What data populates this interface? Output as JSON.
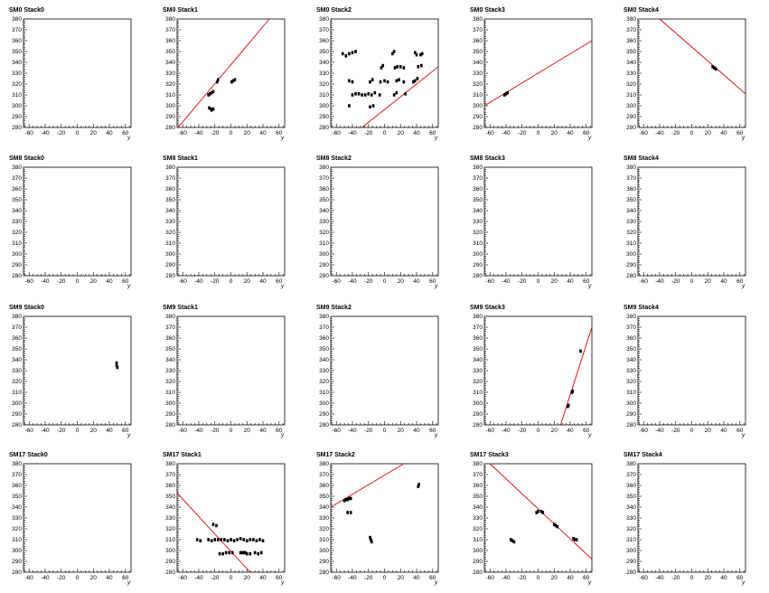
{
  "chart_data": {
    "type": "scatter",
    "x_ticks": [
      -60,
      -40,
      -20,
      0,
      20,
      40,
      60
    ],
    "y_ticks": [
      280,
      290,
      300,
      310,
      320,
      330,
      340,
      350,
      360,
      370,
      380
    ],
    "xlim": [
      -67,
      67
    ],
    "ylim": [
      280,
      380
    ],
    "xlabel": "y",
    "line_color": "#dd0000",
    "marker_color": "#000000",
    "grid": false,
    "panels": [
      {
        "title": "SM0 Stack0",
        "points": [],
        "line": null
      },
      {
        "title": "SM0 Stack1",
        "points": [
          [
            -28,
            310
          ],
          [
            -26,
            311
          ],
          [
            -24,
            312
          ],
          [
            -22,
            313
          ],
          [
            -27,
            298
          ],
          [
            -25,
            297
          ],
          [
            -24,
            296
          ],
          [
            -22,
            297
          ],
          [
            -17,
            322
          ],
          [
            -16,
            324
          ],
          [
            1,
            322
          ],
          [
            3,
            323
          ],
          [
            5,
            324
          ]
        ],
        "line": [
          [
            -67,
            279
          ],
          [
            48,
            380
          ]
        ]
      },
      {
        "title": "SM0 Stack2",
        "points": [
          [
            -52,
            348
          ],
          [
            -48,
            346
          ],
          [
            -44,
            348
          ],
          [
            -40,
            349
          ],
          [
            -36,
            350
          ],
          [
            10,
            348
          ],
          [
            12,
            350
          ],
          [
            38,
            349
          ],
          [
            40,
            347
          ],
          [
            45,
            347
          ],
          [
            47,
            348
          ],
          [
            -44,
            323
          ],
          [
            -40,
            322
          ],
          [
            -18,
            322
          ],
          [
            -15,
            324
          ],
          [
            -5,
            322
          ],
          [
            0,
            323
          ],
          [
            4,
            322
          ],
          [
            15,
            323
          ],
          [
            18,
            324
          ],
          [
            24,
            322
          ],
          [
            36,
            322
          ],
          [
            38,
            323
          ],
          [
            41,
            325
          ],
          [
            -4,
            335
          ],
          [
            -2,
            337
          ],
          [
            13,
            335
          ],
          [
            16,
            336
          ],
          [
            20,
            336
          ],
          [
            24,
            335
          ],
          [
            42,
            336
          ],
          [
            46,
            337
          ],
          [
            -40,
            310
          ],
          [
            -36,
            311
          ],
          [
            -32,
            311
          ],
          [
            -28,
            310
          ],
          [
            -24,
            310
          ],
          [
            -20,
            311
          ],
          [
            -16,
            310
          ],
          [
            -12,
            312
          ],
          [
            -6,
            310
          ],
          [
            12,
            310
          ],
          [
            15,
            312
          ],
          [
            26,
            311
          ],
          [
            -44,
            300
          ],
          [
            -18,
            299
          ],
          [
            -14,
            300
          ]
        ],
        "line": [
          [
            -28,
            280
          ],
          [
            67,
            336
          ]
        ]
      },
      {
        "title": "SM0 Stack3",
        "points": [
          [
            -42,
            310
          ],
          [
            -40,
            311
          ],
          [
            -38,
            312
          ]
        ],
        "line": [
          [
            -67,
            300
          ],
          [
            67,
            360
          ]
        ]
      },
      {
        "title": "SM0 Stack4",
        "points": [
          [
            26,
            336
          ],
          [
            28,
            335
          ],
          [
            30,
            334
          ]
        ],
        "line": [
          [
            -40,
            380
          ],
          [
            67,
            311
          ]
        ]
      },
      {
        "title": "SM8 Stack0",
        "points": [],
        "line": null
      },
      {
        "title": "SM8 Stack1",
        "points": [],
        "line": null
      },
      {
        "title": "SM8 Stack2",
        "points": [],
        "line": null
      },
      {
        "title": "SM8 Stack3",
        "points": [],
        "line": null
      },
      {
        "title": "SM8 Stack4",
        "points": [],
        "line": null
      },
      {
        "title": "SM9 Stack0",
        "points": [
          [
            49,
            337
          ],
          [
            49,
            335
          ],
          [
            50,
            333
          ]
        ],
        "line": null
      },
      {
        "title": "SM9 Stack1",
        "points": [],
        "line": null
      },
      {
        "title": "SM9 Stack2",
        "points": [],
        "line": null
      },
      {
        "title": "SM9 Stack3",
        "points": [
          [
            37,
            297
          ],
          [
            38,
            298
          ],
          [
            42,
            310
          ],
          [
            43,
            311
          ],
          [
            53,
            348
          ]
        ],
        "line": [
          [
            28,
            280
          ],
          [
            67,
            370
          ]
        ]
      },
      {
        "title": "SM9 Stack4",
        "points": [],
        "line": null
      },
      {
        "title": "SM17 Stack0",
        "points": [],
        "line": null
      },
      {
        "title": "SM17 Stack1",
        "points": [
          [
            -22,
            324
          ],
          [
            -18,
            323
          ],
          [
            -42,
            310
          ],
          [
            -38,
            309
          ],
          [
            -28,
            310
          ],
          [
            -24,
            309
          ],
          [
            -20,
            310
          ],
          [
            -16,
            310
          ],
          [
            -12,
            310
          ],
          [
            -8,
            310
          ],
          [
            -4,
            309
          ],
          [
            0,
            310
          ],
          [
            4,
            309
          ],
          [
            8,
            310
          ],
          [
            12,
            311
          ],
          [
            16,
            310
          ],
          [
            20,
            309
          ],
          [
            24,
            310
          ],
          [
            28,
            310
          ],
          [
            32,
            309
          ],
          [
            36,
            310
          ],
          [
            40,
            309
          ],
          [
            -14,
            297
          ],
          [
            -10,
            297
          ],
          [
            -6,
            298
          ],
          [
            -2,
            298
          ],
          [
            2,
            298
          ],
          [
            12,
            298
          ],
          [
            14,
            298
          ],
          [
            16,
            298
          ],
          [
            18,
            298
          ],
          [
            20,
            297
          ],
          [
            24,
            297
          ],
          [
            30,
            298
          ],
          [
            34,
            297
          ],
          [
            38,
            298
          ]
        ],
        "line": [
          [
            -67,
            353
          ],
          [
            24,
            280
          ]
        ]
      },
      {
        "title": "SM17 Stack2",
        "points": [
          [
            -50,
            346
          ],
          [
            -48,
            347
          ],
          [
            -46,
            347
          ],
          [
            -44,
            348
          ],
          [
            -42,
            348
          ],
          [
            -46,
            335
          ],
          [
            -42,
            335
          ],
          [
            -18,
            312
          ],
          [
            -17,
            310
          ],
          [
            -16,
            308
          ],
          [
            42,
            359
          ],
          [
            43,
            361
          ]
        ],
        "line": [
          [
            -67,
            340
          ],
          [
            24,
            380
          ]
        ]
      },
      {
        "title": "SM17 Stack3",
        "points": [
          [
            -34,
            310
          ],
          [
            -32,
            309
          ],
          [
            -30,
            308
          ],
          [
            -2,
            335
          ],
          [
            0,
            336
          ],
          [
            4,
            336
          ],
          [
            6,
            335
          ],
          [
            20,
            324
          ],
          [
            22,
            323
          ],
          [
            24,
            322
          ],
          [
            44,
            311
          ],
          [
            46,
            310
          ],
          [
            48,
            310
          ]
        ],
        "line": [
          [
            -60,
            380
          ],
          [
            67,
            292
          ]
        ]
      },
      {
        "title": "SM17 Stack4",
        "points": [],
        "line": null
      }
    ]
  }
}
